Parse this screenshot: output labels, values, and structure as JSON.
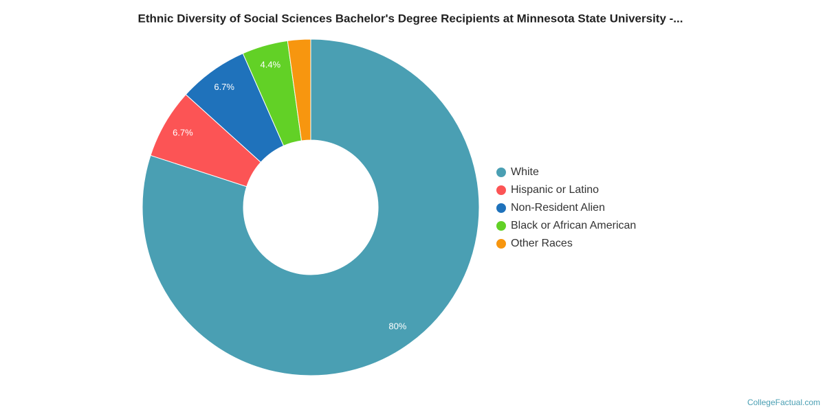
{
  "chart_data": {
    "type": "donut",
    "title": "Ethnic Diversity of Social Sciences Bachelor's Degree Recipients at Minnesota State University -...",
    "categories": [
      "White",
      "Hispanic or Latino",
      "Non-Resident Alien",
      "Black or African American",
      "Other Races"
    ],
    "values": [
      80,
      6.7,
      6.7,
      4.4,
      2.2
    ],
    "value_labels": [
      "80%",
      "6.7%",
      "6.7%",
      "4.4%",
      null
    ],
    "colors": [
      "#4a9fb3",
      "#fc5455",
      "#1f72bb",
      "#62d126",
      "#f7960f"
    ],
    "legend": "right",
    "source": "CollegeFactual.com"
  }
}
